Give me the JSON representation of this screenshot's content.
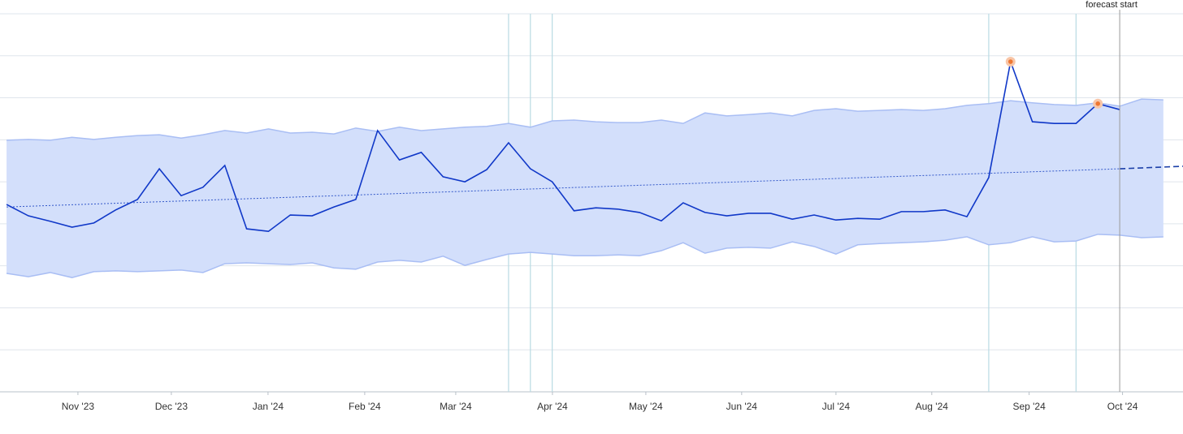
{
  "chart_data": {
    "type": "line",
    "xlim": [
      -0.3,
      53.9
    ],
    "ylim": [
      0,
      9
    ],
    "yticks": [
      0,
      1,
      2,
      3,
      4,
      5,
      6,
      7,
      8,
      9
    ],
    "grid": true,
    "xticks": [
      {
        "value": 3.27,
        "label": "Nov '23"
      },
      {
        "value": 7.55,
        "label": "Dec '23"
      },
      {
        "value": 11.98,
        "label": "Jan '24"
      },
      {
        "value": 16.41,
        "label": "Feb '24"
      },
      {
        "value": 20.58,
        "label": "Mar '24"
      },
      {
        "value": 25.01,
        "label": "Apr '24"
      },
      {
        "value": 29.29,
        "label": "May '24"
      },
      {
        "value": 33.68,
        "label": "Jun '24"
      },
      {
        "value": 38.0,
        "label": "Jul '24"
      },
      {
        "value": 42.39,
        "label": "Aug '24"
      },
      {
        "value": 46.85,
        "label": "Sep '24"
      },
      {
        "value": 51.13,
        "label": "Oct '24"
      }
    ],
    "x": [
      0,
      1,
      2,
      3,
      4,
      5,
      6,
      7,
      8,
      9,
      10,
      11,
      12,
      13,
      14,
      15,
      16,
      17,
      18,
      19,
      20,
      21,
      22,
      23,
      24,
      25,
      26,
      27,
      28,
      29,
      30,
      31,
      32,
      33,
      34,
      35,
      36,
      37,
      38,
      39,
      40,
      41,
      42,
      43,
      44,
      45,
      46,
      47,
      48,
      49,
      50,
      51
    ],
    "values": [
      4.46,
      4.19,
      4.06,
      3.92,
      4.02,
      4.33,
      4.58,
      5.31,
      4.67,
      4.87,
      5.39,
      3.88,
      3.82,
      4.21,
      4.19,
      4.4,
      4.58,
      6.22,
      5.52,
      5.7,
      5.12,
      5.0,
      5.29,
      5.93,
      5.31,
      5.0,
      4.31,
      4.38,
      4.35,
      4.27,
      4.07,
      4.5,
      4.27,
      4.19,
      4.25,
      4.25,
      4.11,
      4.21,
      4.09,
      4.13,
      4.11,
      4.29,
      4.29,
      4.33,
      4.17,
      5.1,
      7.86,
      6.43,
      6.39,
      6.39,
      6.86,
      6.72
    ],
    "color": "#1038c8",
    "band": {
      "x": [
        0,
        1,
        2,
        3,
        4,
        5,
        6,
        7,
        8,
        9,
        10,
        11,
        12,
        13,
        14,
        15,
        16,
        17,
        18,
        19,
        20,
        21,
        22,
        23,
        24,
        25,
        26,
        27,
        28,
        29,
        30,
        31,
        32,
        33,
        34,
        35,
        36,
        37,
        38,
        39,
        40,
        41,
        42,
        43,
        44,
        45,
        46,
        47,
        48,
        49,
        50,
        51,
        52,
        53
      ],
      "upper": [
        5.99,
        6.01,
        5.99,
        6.06,
        6.01,
        6.06,
        6.1,
        6.12,
        6.04,
        6.12,
        6.22,
        6.16,
        6.26,
        6.16,
        6.18,
        6.14,
        6.28,
        6.2,
        6.3,
        6.22,
        6.26,
        6.3,
        6.32,
        6.39,
        6.3,
        6.45,
        6.47,
        6.43,
        6.41,
        6.41,
        6.47,
        6.39,
        6.64,
        6.57,
        6.6,
        6.64,
        6.57,
        6.7,
        6.74,
        6.68,
        6.7,
        6.72,
        6.7,
        6.74,
        6.82,
        6.86,
        6.93,
        6.88,
        6.84,
        6.82,
        6.88,
        6.8,
        6.97,
        6.95
      ],
      "lower": [
        2.82,
        2.74,
        2.84,
        2.72,
        2.86,
        2.88,
        2.86,
        2.88,
        2.9,
        2.84,
        3.05,
        3.07,
        3.05,
        3.03,
        3.07,
        2.95,
        2.92,
        3.09,
        3.13,
        3.09,
        3.23,
        3.01,
        3.15,
        3.28,
        3.32,
        3.28,
        3.24,
        3.24,
        3.26,
        3.24,
        3.36,
        3.55,
        3.3,
        3.42,
        3.44,
        3.42,
        3.57,
        3.46,
        3.28,
        3.5,
        3.53,
        3.55,
        3.57,
        3.61,
        3.69,
        3.5,
        3.55,
        3.69,
        3.57,
        3.59,
        3.75,
        3.73,
        3.67,
        3.69
      ],
      "color": "#d3dffb",
      "edge_color": "#a9bef4"
    },
    "trend": {
      "x": [
        0,
        51
      ],
      "values": [
        4.4,
        5.31
      ],
      "color": "#3358c9"
    },
    "forecast_trend": {
      "x": [
        51,
        53.9
      ],
      "values": [
        5.31,
        5.37
      ],
      "color": "#1b3fa8"
    },
    "anomalies": {
      "x": [
        46,
        50
      ],
      "values": [
        7.86,
        6.86
      ],
      "color": "#ee7733",
      "halo": "#f8c6a8"
    },
    "event_lines_x": [
      23,
      24,
      25,
      45,
      49
    ],
    "event_color": "#b9dbe3",
    "forecast_start": {
      "x": 51,
      "label": "forecast start",
      "color": "#9a9a9a"
    }
  }
}
